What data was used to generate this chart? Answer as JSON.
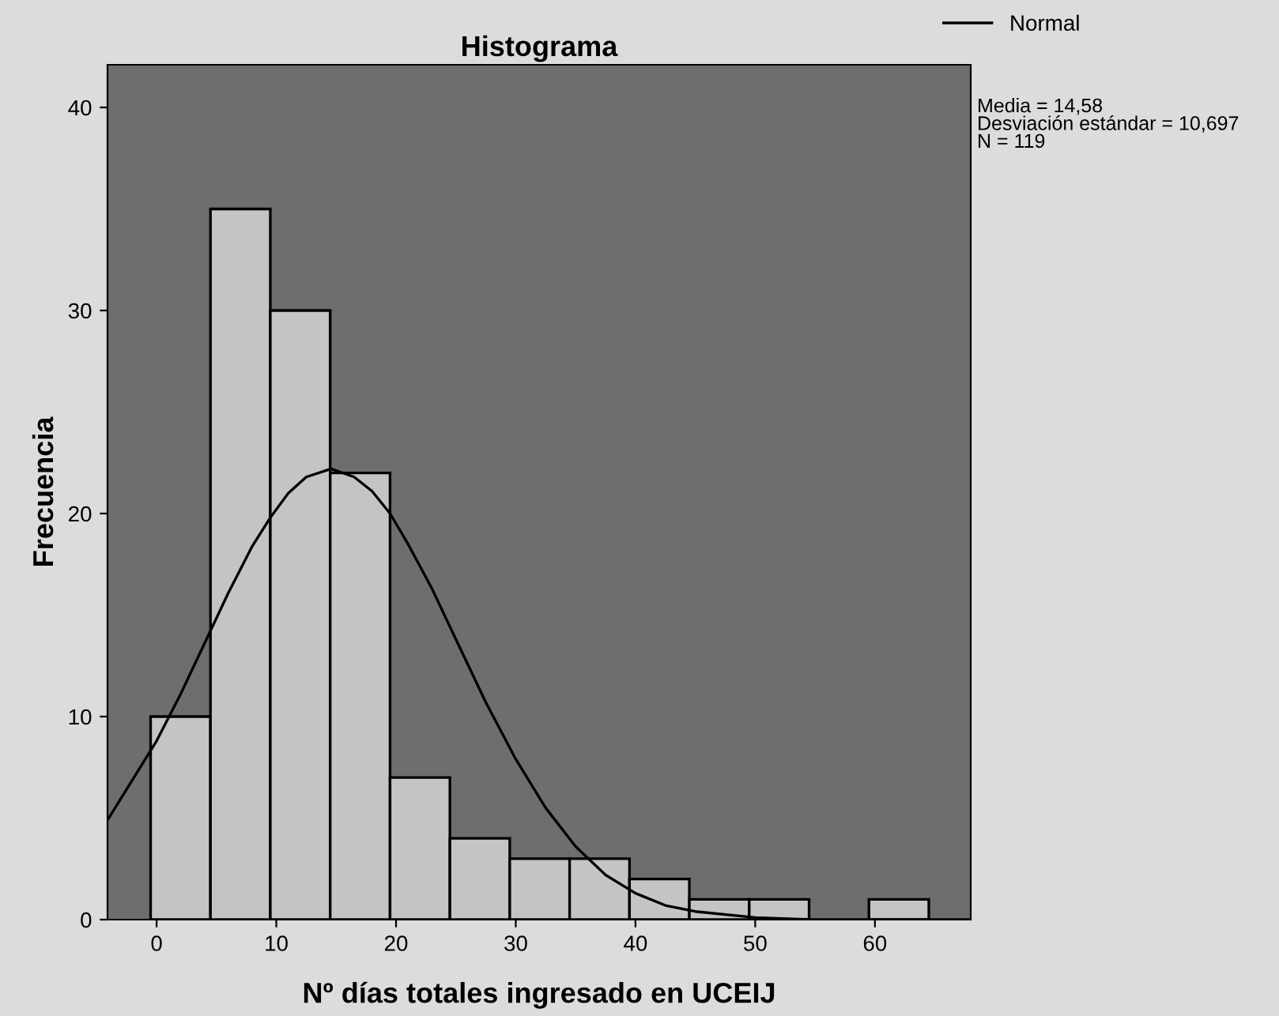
{
  "chart_data": {
    "type": "histogram",
    "title": "Histograma",
    "xlabel": "Nº días totales ingresado en UCEIJ",
    "ylabel": "Frecuencia",
    "bins": [
      -0.5,
      4.5,
      9.5,
      14.5,
      19.5,
      24.5,
      29.5,
      34.5,
      39.5,
      44.5,
      49.5,
      54.5,
      59.5,
      64.5
    ],
    "values": [
      10,
      35,
      30,
      22,
      7,
      4,
      3,
      3,
      2,
      1,
      1,
      0,
      1
    ],
    "color": "#c4c4c4",
    "series": [
      {
        "type": "line",
        "name": "Normal",
        "color": "#000000",
        "x": [
          -4.1,
          0,
          2,
          4,
          6,
          8,
          9.5,
          11,
          12.5,
          14.58,
          16.5,
          18,
          19.5,
          21,
          23,
          25,
          27.5,
          30,
          32.5,
          35,
          37.5,
          40,
          42.5,
          45,
          50,
          55,
          60,
          68
        ],
        "values": [
          4.9,
          8.8,
          11.1,
          13.6,
          16.1,
          18.4,
          19.8,
          21.0,
          21.8,
          22.2,
          21.8,
          21.1,
          20.0,
          18.5,
          16.3,
          13.8,
          10.7,
          7.9,
          5.5,
          3.6,
          2.2,
          1.3,
          0.7,
          0.4,
          0.1,
          0.0,
          0.0,
          0.0
        ]
      }
    ],
    "annotations": [
      "Media = 14,58\nDesviación estándar = 10,697\nN = 119"
    ],
    "xlim": [
      -4.1,
      68
    ],
    "ylim": [
      0,
      42.1
    ],
    "xticks": [
      0,
      10,
      20,
      30,
      40,
      50,
      60
    ],
    "yticks": [
      0,
      10,
      20,
      30,
      40
    ],
    "grid": false,
    "legend": "top right"
  }
}
